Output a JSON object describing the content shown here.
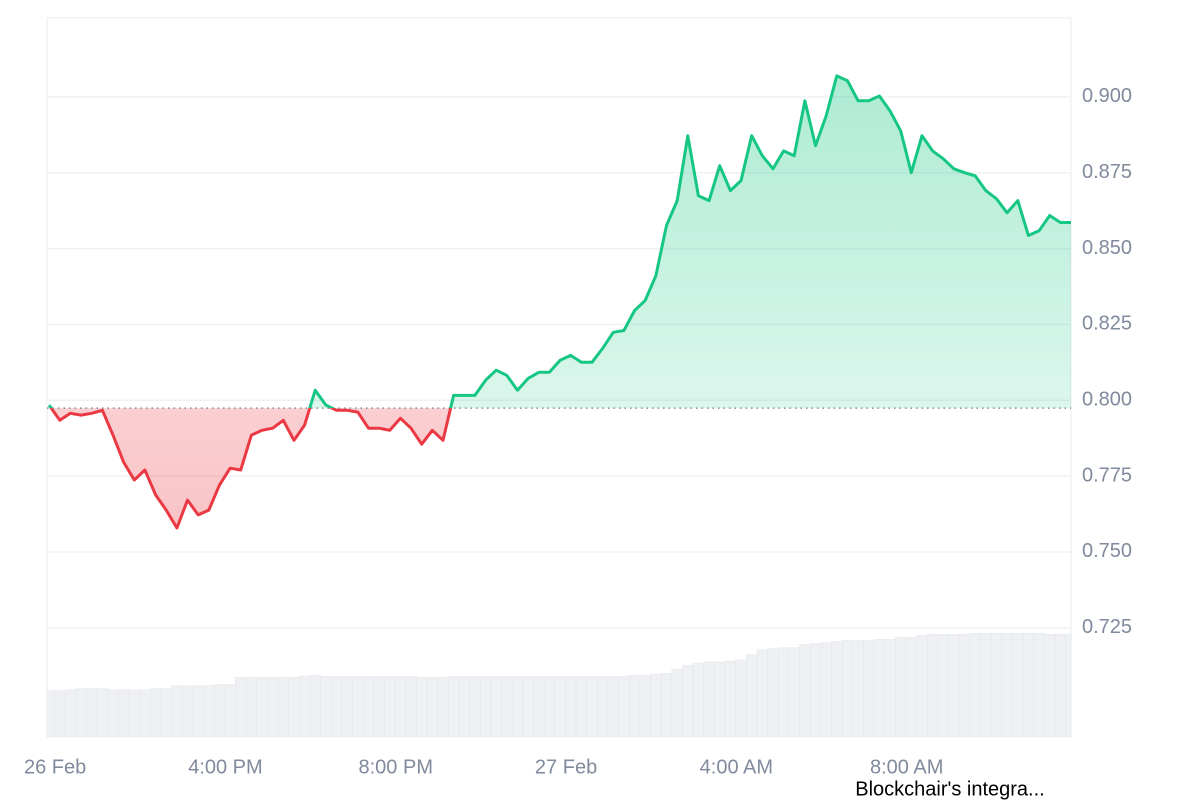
{
  "chart_data": {
    "type": "line",
    "annotation": "Blockchair's integra...",
    "baseline": 0.7974,
    "up_color": "#16c784",
    "down_color": "#ea3943",
    "xlim": [
      11.95,
      36.0
    ],
    "xticks": [
      {
        "value": 12,
        "label": "26 Feb"
      },
      {
        "value": 16,
        "label": "4:00 PM"
      },
      {
        "value": 20,
        "label": "8:00 PM"
      },
      {
        "value": 24,
        "label": "27 Feb"
      },
      {
        "value": 28,
        "label": "4:00 AM"
      },
      {
        "value": 32,
        "label": "8:00 AM"
      }
    ],
    "ylim": [
      0.689,
      0.926
    ],
    "yticks": [
      {
        "value": 0.725,
        "label": "0.725"
      },
      {
        "value": 0.75,
        "label": "0.750"
      },
      {
        "value": 0.775,
        "label": "0.775"
      },
      {
        "value": 0.8,
        "label": "0.800"
      },
      {
        "value": 0.825,
        "label": "0.825"
      },
      {
        "value": 0.85,
        "label": "0.850"
      },
      {
        "value": 0.875,
        "label": "0.875"
      },
      {
        "value": 0.9,
        "label": "0.900"
      }
    ],
    "grid": true,
    "y2lim": [
      0,
      700
    ],
    "x": [
      12,
      12.25,
      12.5,
      12.75,
      13,
      13.25,
      13.5,
      13.75,
      14,
      14.25,
      14.5,
      14.75,
      15,
      15.25,
      15.5,
      15.75,
      16,
      16.25,
      16.5,
      16.75,
      17,
      17.25,
      17.5,
      17.75,
      18,
      18.25,
      18.5,
      18.75,
      19,
      19.25,
      19.5,
      19.75,
      20,
      20.25,
      20.5,
      20.75,
      21,
      21.25,
      21.5,
      21.75,
      22,
      22.25,
      22.5,
      22.75,
      23,
      23.25,
      23.5,
      23.75,
      24,
      24.25,
      24.5,
      24.75,
      25,
      25.25,
      25.5,
      25.75,
      26,
      26.25,
      26.5,
      26.75,
      27,
      27.25,
      27.5,
      27.75,
      28,
      28.25,
      28.5,
      28.75,
      29,
      29.25,
      29.5,
      29.75,
      30,
      30.25,
      30.5,
      30.75,
      31,
      31.25,
      31.5,
      31.75,
      32,
      32.25,
      32.5,
      32.75,
      33,
      33.25,
      33.5,
      33.75,
      34,
      34.25,
      34.5,
      34.75,
      35,
      35.25,
      35.5,
      35.75,
      36
    ],
    "series": [
      {
        "values": [
          0.7984,
          0.7934,
          0.7957,
          0.7951,
          0.7957,
          0.7967,
          0.7885,
          0.7796,
          0.7737,
          0.777,
          0.7688,
          0.7638,
          0.7579,
          0.7671,
          0.7622,
          0.7638,
          0.772,
          0.7776,
          0.777,
          0.7885,
          0.7901,
          0.7908,
          0.7934,
          0.7868,
          0.7918,
          0.8033,
          0.7984,
          0.7967,
          0.7967,
          0.7961,
          0.7908,
          0.7908,
          0.7901,
          0.7941,
          0.7908,
          0.7855,
          0.7901,
          0.7868,
          0.8016,
          0.8016,
          0.8016,
          0.8066,
          0.8099,
          0.8082,
          0.8033,
          0.8072,
          0.8092,
          0.8092,
          0.8132,
          0.8148,
          0.8125,
          0.8125,
          0.8171,
          0.8224,
          0.823,
          0.8296,
          0.8329,
          0.8411,
          0.8576,
          0.8658,
          0.8872,
          0.8674,
          0.8658,
          0.8773,
          0.8691,
          0.8724,
          0.8872,
          0.8806,
          0.8763,
          0.8822,
          0.8806,
          0.8987,
          0.8839,
          0.8938,
          0.9069,
          0.9053,
          0.8987,
          0.8987,
          0.9003,
          0.8954,
          0.8888,
          0.875,
          0.8872,
          0.8822,
          0.8796,
          0.8763,
          0.875,
          0.874,
          0.8691,
          0.8664,
          0.8618,
          0.8658,
          0.8543,
          0.8559,
          0.8609,
          0.8586,
          0.8586
        ]
      },
      {
        "axis": "y2",
        "color": "#eef0f3",
        "values": [
          45,
          45,
          46,
          47,
          47,
          47,
          46,
          46,
          46,
          46,
          47,
          47,
          50,
          50,
          50,
          50,
          51,
          51,
          58,
          58,
          58,
          58,
          58,
          58,
          59,
          60,
          59,
          59,
          59,
          59,
          59,
          59,
          59,
          59,
          59,
          58,
          58,
          58,
          59,
          59,
          59,
          59,
          59,
          59,
          59,
          59,
          59,
          59,
          59,
          59,
          59,
          59,
          59,
          59,
          59,
          60,
          60,
          61,
          62,
          66,
          70,
          72,
          73,
          73,
          74,
          75,
          80,
          85,
          86,
          87,
          87,
          90,
          91,
          92,
          93,
          94,
          94,
          94,
          95,
          95,
          97,
          97,
          99,
          100,
          100,
          100,
          100,
          101,
          101,
          101,
          101,
          101,
          101,
          101,
          100,
          100,
          100
        ]
      }
    ]
  }
}
